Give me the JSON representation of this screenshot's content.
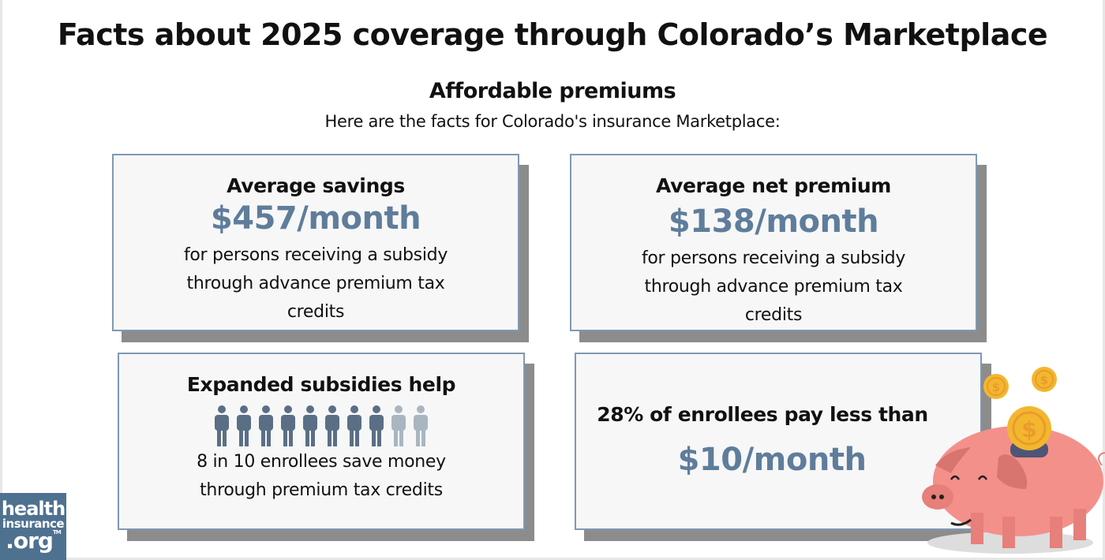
{
  "title": "Facts about 2025 coverage through Colorado’s Marketplace",
  "subtitle": "Affordable premiums",
  "intro": "Here are the facts for Colorado's insurance Marketplace:",
  "cards": [
    {
      "title": "Average savings",
      "value": "$457/month",
      "desc": "for persons receiving a subsidy through advance premium tax credits"
    },
    {
      "title": "Average net premium",
      "value": "$138/month",
      "desc": "for persons receiving a subsidy through advance premium tax credits"
    },
    {
      "title": "Expanded subsidies help",
      "desc": "8 in 10 enrollees save money through premium tax credits",
      "people_total": 10,
      "people_highlighted": 8
    },
    {
      "title": "28% of enrollees pay less than",
      "value": "$10/month"
    }
  ],
  "logo": {
    "line1": "health",
    "line2": "insurance",
    "line3": ".org",
    "tm": "TM"
  },
  "colors": {
    "value": "#5f7d9b",
    "person_dark": "#5a6f86",
    "person_light": "#a9b6c2",
    "logo_bg": "#4f7190",
    "shadow": "#8c8c8c"
  }
}
